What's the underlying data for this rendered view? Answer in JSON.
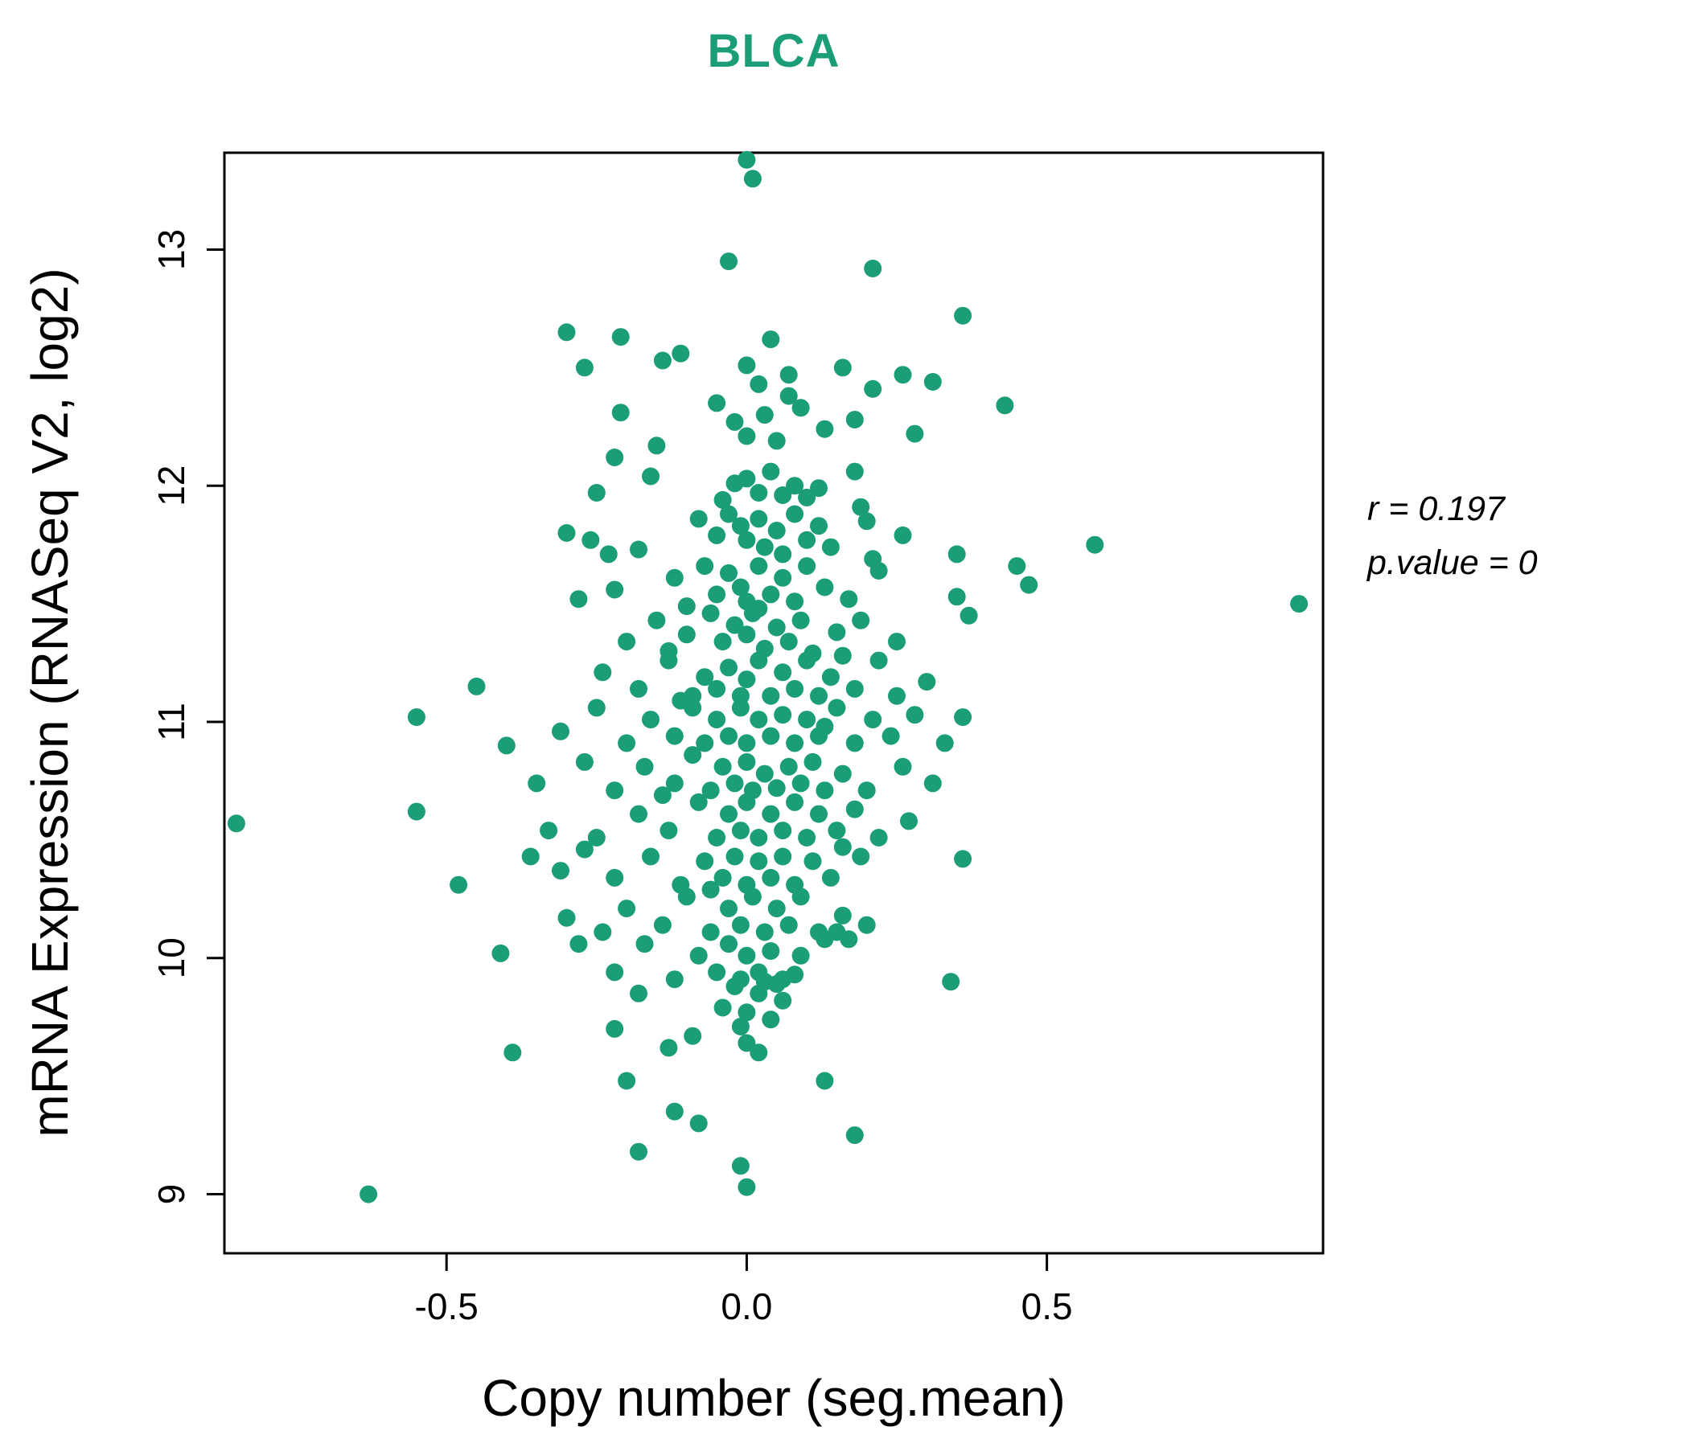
{
  "chart_data": {
    "type": "scatter",
    "title": "BLCA",
    "title_color": "#1b9e77",
    "point_color": "#1b9e77",
    "point_radius": 11,
    "xlabel": "Copy number (seg.mean)",
    "ylabel": "mRNA Expression (RNASeq V2, log2)",
    "xlim": [
      -0.87,
      0.96
    ],
    "ylim": [
      8.75,
      13.41
    ],
    "grid": false,
    "legend": "none",
    "xticks": [
      {
        "value": -0.5,
        "label": "-0.5"
      },
      {
        "value": 0.0,
        "label": "0.0"
      },
      {
        "value": 0.5,
        "label": "0.5"
      }
    ],
    "yticks": [
      {
        "value": 9,
        "label": "9"
      },
      {
        "value": 10,
        "label": "10"
      },
      {
        "value": 11,
        "label": "11"
      },
      {
        "value": 12,
        "label": "12"
      },
      {
        "value": 13,
        "label": "13"
      }
    ],
    "annotation": {
      "line1": "r = 0.197",
      "line2": "p.value = 0"
    },
    "points": [
      [
        0.0,
        13.38
      ],
      [
        0.01,
        13.3
      ],
      [
        -0.03,
        12.95
      ],
      [
        0.21,
        12.92
      ],
      [
        0.36,
        12.72
      ],
      [
        -0.3,
        12.65
      ],
      [
        -0.21,
        12.63
      ],
      [
        0.04,
        12.62
      ],
      [
        -0.27,
        12.5
      ],
      [
        -0.14,
        12.53
      ],
      [
        -0.11,
        12.56
      ],
      [
        0.0,
        12.51
      ],
      [
        0.07,
        12.47
      ],
      [
        0.02,
        12.43
      ],
      [
        0.16,
        12.5
      ],
      [
        0.21,
        12.41
      ],
      [
        0.26,
        12.47
      ],
      [
        0.31,
        12.44
      ],
      [
        -0.05,
        12.35
      ],
      [
        -0.21,
        12.31
      ],
      [
        -0.02,
        12.27
      ],
      [
        0.03,
        12.3
      ],
      [
        0.07,
        12.38
      ],
      [
        0.09,
        12.33
      ],
      [
        0.13,
        12.24
      ],
      [
        0.18,
        12.28
      ],
      [
        0.28,
        12.22
      ],
      [
        0.43,
        12.34
      ],
      [
        0.0,
        12.21
      ],
      [
        0.05,
        12.19
      ],
      [
        -0.22,
        12.12
      ],
      [
        -0.15,
        12.17
      ],
      [
        -0.16,
        12.04
      ],
      [
        -0.02,
        12.01
      ],
      [
        0.0,
        12.03
      ],
      [
        0.02,
        11.97
      ],
      [
        0.04,
        12.06
      ],
      [
        0.06,
        11.96
      ],
      [
        0.08,
        12.0
      ],
      [
        0.1,
        11.95
      ],
      [
        0.18,
        12.06
      ],
      [
        0.12,
        11.99
      ],
      [
        -0.04,
        11.94
      ],
      [
        0.19,
        11.91
      ],
      [
        -0.25,
        11.97
      ],
      [
        -0.3,
        11.8
      ],
      [
        -0.26,
        11.77
      ],
      [
        -0.23,
        11.71
      ],
      [
        -0.08,
        11.86
      ],
      [
        -0.05,
        11.79
      ],
      [
        -0.03,
        11.88
      ],
      [
        -0.01,
        11.83
      ],
      [
        0.0,
        11.77
      ],
      [
        0.02,
        11.86
      ],
      [
        0.03,
        11.74
      ],
      [
        0.05,
        11.81
      ],
      [
        0.06,
        11.71
      ],
      [
        0.08,
        11.88
      ],
      [
        0.1,
        11.77
      ],
      [
        0.12,
        11.83
      ],
      [
        0.14,
        11.74
      ],
      [
        0.2,
        11.85
      ],
      [
        0.26,
        11.79
      ],
      [
        0.35,
        11.71
      ],
      [
        0.58,
        11.75
      ],
      [
        0.21,
        11.69
      ],
      [
        -0.18,
        11.73
      ],
      [
        -0.28,
        11.52
      ],
      [
        -0.22,
        11.56
      ],
      [
        -0.12,
        11.61
      ],
      [
        -0.07,
        11.66
      ],
      [
        -0.05,
        11.54
      ],
      [
        -0.03,
        11.63
      ],
      [
        -0.01,
        11.57
      ],
      [
        0.0,
        11.51
      ],
      [
        0.02,
        11.66
      ],
      [
        0.04,
        11.54
      ],
      [
        0.06,
        11.61
      ],
      [
        0.08,
        11.51
      ],
      [
        0.1,
        11.66
      ],
      [
        0.13,
        11.57
      ],
      [
        0.17,
        11.52
      ],
      [
        0.22,
        11.64
      ],
      [
        0.47,
        11.58
      ],
      [
        0.45,
        11.66
      ],
      [
        0.92,
        11.5
      ],
      [
        0.35,
        11.53
      ],
      [
        -0.1,
        11.49
      ],
      [
        -0.2,
        11.34
      ],
      [
        -0.15,
        11.43
      ],
      [
        -0.1,
        11.37
      ],
      [
        -0.06,
        11.46
      ],
      [
        -0.04,
        11.34
      ],
      [
        -0.02,
        11.41
      ],
      [
        0.0,
        11.37
      ],
      [
        0.01,
        11.46
      ],
      [
        0.03,
        11.31
      ],
      [
        0.05,
        11.4
      ],
      [
        0.07,
        11.34
      ],
      [
        0.09,
        11.43
      ],
      [
        0.11,
        11.29
      ],
      [
        0.15,
        11.38
      ],
      [
        0.19,
        11.43
      ],
      [
        0.25,
        11.34
      ],
      [
        0.37,
        11.45
      ],
      [
        -0.13,
        11.3
      ],
      [
        0.02,
        11.48
      ],
      [
        -0.45,
        11.15
      ],
      [
        -0.24,
        11.21
      ],
      [
        -0.18,
        11.14
      ],
      [
        -0.13,
        11.26
      ],
      [
        -0.09,
        11.11
      ],
      [
        -0.07,
        11.19
      ],
      [
        -0.05,
        11.14
      ],
      [
        -0.03,
        11.23
      ],
      [
        -0.01,
        11.11
      ],
      [
        0.0,
        11.18
      ],
      [
        0.02,
        11.26
      ],
      [
        0.04,
        11.11
      ],
      [
        0.06,
        11.21
      ],
      [
        0.08,
        11.14
      ],
      [
        0.1,
        11.26
      ],
      [
        0.12,
        11.11
      ],
      [
        0.14,
        11.19
      ],
      [
        0.18,
        11.14
      ],
      [
        0.22,
        11.26
      ],
      [
        0.25,
        11.11
      ],
      [
        0.3,
        11.17
      ],
      [
        -0.11,
        11.09
      ],
      [
        0.16,
        11.28
      ],
      [
        -0.55,
        11.02
      ],
      [
        -0.4,
        10.9
      ],
      [
        -0.31,
        10.96
      ],
      [
        -0.25,
        11.06
      ],
      [
        -0.2,
        10.91
      ],
      [
        -0.16,
        11.01
      ],
      [
        -0.12,
        10.94
      ],
      [
        -0.09,
        11.06
      ],
      [
        -0.07,
        10.91
      ],
      [
        -0.05,
        11.01
      ],
      [
        -0.03,
        10.94
      ],
      [
        -0.01,
        11.06
      ],
      [
        0.0,
        10.91
      ],
      [
        0.02,
        11.01
      ],
      [
        0.04,
        10.94
      ],
      [
        0.06,
        11.03
      ],
      [
        0.08,
        10.91
      ],
      [
        0.1,
        11.01
      ],
      [
        0.12,
        10.94
      ],
      [
        0.15,
        11.06
      ],
      [
        0.18,
        10.91
      ],
      [
        0.21,
        11.01
      ],
      [
        0.24,
        10.94
      ],
      [
        0.28,
        11.03
      ],
      [
        0.33,
        10.91
      ],
      [
        0.36,
        11.02
      ],
      [
        0.13,
        10.98
      ],
      [
        -0.35,
        10.74
      ],
      [
        -0.27,
        10.83
      ],
      [
        -0.22,
        10.71
      ],
      [
        -0.17,
        10.81
      ],
      [
        -0.12,
        10.74
      ],
      [
        -0.09,
        10.86
      ],
      [
        -0.06,
        10.71
      ],
      [
        -0.04,
        10.81
      ],
      [
        -0.02,
        10.74
      ],
      [
        0.0,
        10.83
      ],
      [
        0.01,
        10.71
      ],
      [
        0.03,
        10.78
      ],
      [
        0.05,
        10.72
      ],
      [
        0.07,
        10.81
      ],
      [
        0.09,
        10.74
      ],
      [
        0.11,
        10.83
      ],
      [
        0.13,
        10.71
      ],
      [
        0.16,
        10.78
      ],
      [
        0.2,
        10.71
      ],
      [
        0.26,
        10.81
      ],
      [
        0.31,
        10.74
      ],
      [
        -0.14,
        10.69
      ],
      [
        -0.85,
        10.57
      ],
      [
        -0.55,
        10.62
      ],
      [
        -0.33,
        10.54
      ],
      [
        -0.25,
        10.51
      ],
      [
        -0.18,
        10.61
      ],
      [
        -0.13,
        10.54
      ],
      [
        -0.08,
        10.66
      ],
      [
        -0.05,
        10.51
      ],
      [
        -0.03,
        10.61
      ],
      [
        -0.01,
        10.54
      ],
      [
        0.0,
        10.66
      ],
      [
        0.02,
        10.51
      ],
      [
        0.04,
        10.61
      ],
      [
        0.06,
        10.54
      ],
      [
        0.08,
        10.66
      ],
      [
        0.1,
        10.51
      ],
      [
        0.12,
        10.61
      ],
      [
        0.15,
        10.54
      ],
      [
        0.18,
        10.63
      ],
      [
        0.22,
        10.51
      ],
      [
        0.27,
        10.58
      ],
      [
        0.16,
        10.47
      ],
      [
        -0.48,
        10.31
      ],
      [
        -0.36,
        10.43
      ],
      [
        -0.31,
        10.37
      ],
      [
        -0.27,
        10.46
      ],
      [
        -0.22,
        10.34
      ],
      [
        -0.16,
        10.43
      ],
      [
        -0.11,
        10.31
      ],
      [
        -0.07,
        10.41
      ],
      [
        -0.04,
        10.34
      ],
      [
        -0.02,
        10.43
      ],
      [
        0.0,
        10.31
      ],
      [
        0.02,
        10.41
      ],
      [
        0.04,
        10.34
      ],
      [
        0.06,
        10.43
      ],
      [
        0.08,
        10.31
      ],
      [
        0.11,
        10.41
      ],
      [
        0.14,
        10.34
      ],
      [
        0.19,
        10.43
      ],
      [
        0.36,
        10.42
      ],
      [
        -0.06,
        10.29
      ],
      [
        -0.3,
        10.17
      ],
      [
        -0.24,
        10.11
      ],
      [
        -0.2,
        10.21
      ],
      [
        -0.14,
        10.14
      ],
      [
        -0.1,
        10.26
      ],
      [
        -0.06,
        10.11
      ],
      [
        -0.03,
        10.21
      ],
      [
        -0.01,
        10.14
      ],
      [
        0.01,
        10.26
      ],
      [
        0.03,
        10.11
      ],
      [
        0.05,
        10.21
      ],
      [
        0.07,
        10.14
      ],
      [
        0.09,
        10.26
      ],
      [
        0.12,
        10.11
      ],
      [
        0.16,
        10.18
      ],
      [
        0.2,
        10.14
      ],
      [
        0.15,
        10.11
      ],
      [
        -0.41,
        10.02
      ],
      [
        -0.28,
        10.06
      ],
      [
        -0.22,
        9.94
      ],
      [
        -0.17,
        10.06
      ],
      [
        -0.12,
        9.91
      ],
      [
        -0.08,
        10.01
      ],
      [
        -0.05,
        9.94
      ],
      [
        -0.03,
        10.06
      ],
      [
        -0.01,
        9.91
      ],
      [
        0.0,
        10.01
      ],
      [
        0.02,
        9.94
      ],
      [
        0.04,
        10.03
      ],
      [
        0.06,
        9.91
      ],
      [
        0.09,
        10.01
      ],
      [
        0.13,
        10.08
      ],
      [
        0.17,
        10.08
      ],
      [
        0.34,
        9.9
      ],
      [
        0.05,
        9.89
      ],
      [
        -0.18,
        9.85
      ],
      [
        -0.04,
        9.79
      ],
      [
        -0.02,
        9.88
      ],
      [
        0.0,
        9.77
      ],
      [
        0.02,
        9.85
      ],
      [
        0.04,
        9.74
      ],
      [
        0.06,
        9.82
      ],
      [
        -0.01,
        9.71
      ],
      [
        0.03,
        9.9
      ],
      [
        0.08,
        9.93
      ],
      [
        -0.22,
        9.7
      ],
      [
        -0.13,
        9.62
      ],
      [
        -0.09,
        9.67
      ],
      [
        -0.39,
        9.6
      ],
      [
        0.02,
        9.6
      ],
      [
        0.0,
        9.64
      ],
      [
        -0.2,
        9.48
      ],
      [
        -0.12,
        9.35
      ],
      [
        0.13,
        9.48
      ],
      [
        -0.08,
        9.3
      ],
      [
        0.18,
        9.25
      ],
      [
        -0.63,
        9.0
      ],
      [
        -0.18,
        9.18
      ],
      [
        -0.01,
        9.12
      ],
      [
        0.0,
        9.03
      ]
    ]
  }
}
